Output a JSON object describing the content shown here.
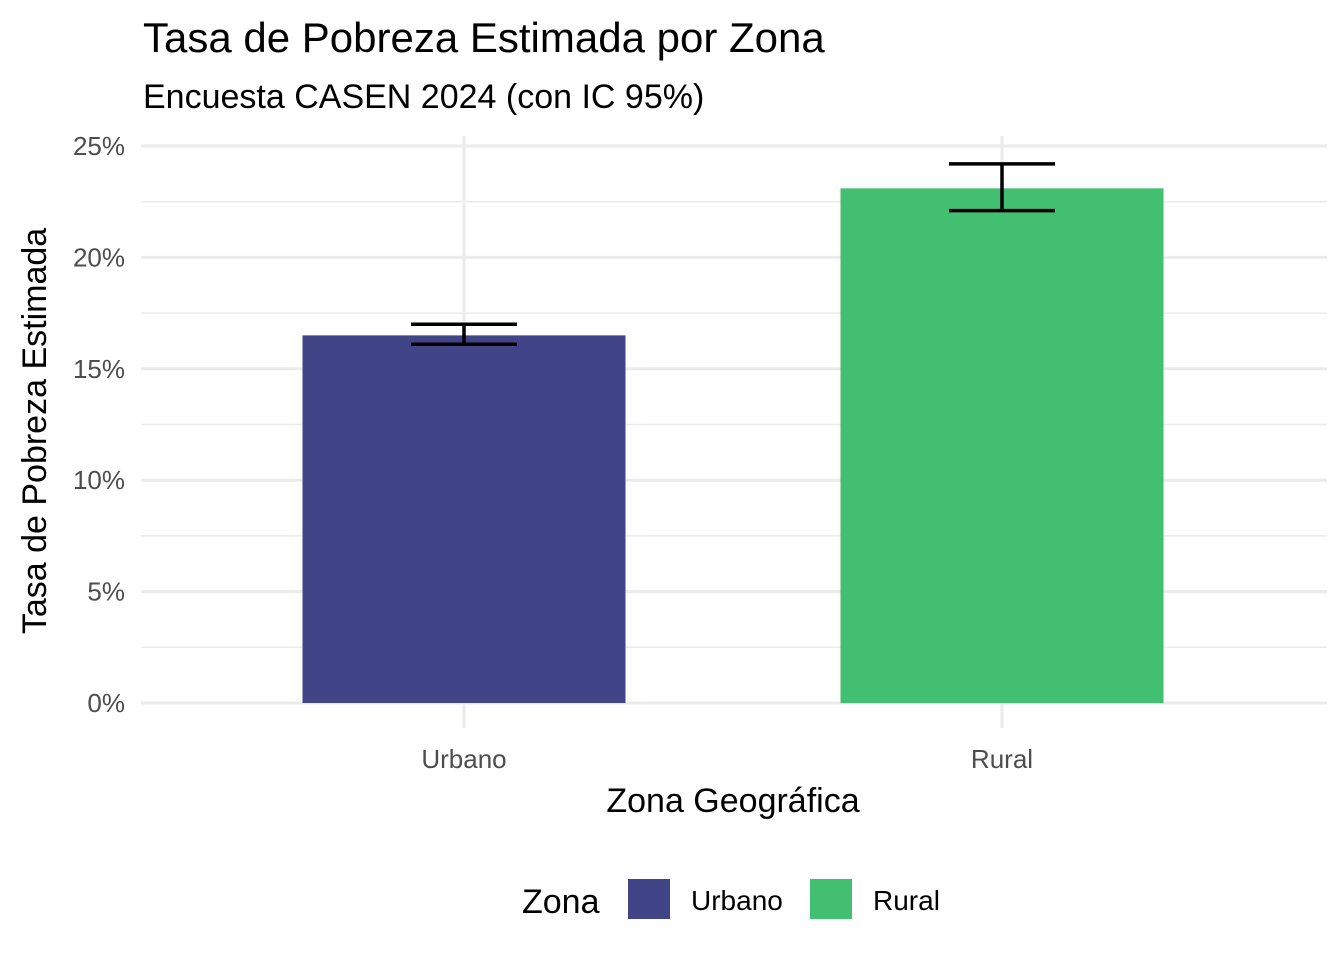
{
  "chart_data": {
    "type": "bar",
    "title": "Tasa de Pobreza Estimada por Zona",
    "subtitle": "Encuesta CASEN 2024 (con IC 95%)",
    "xlabel": "Zona Geográfica",
    "ylabel": "Tasa de Pobreza Estimada",
    "categories": [
      "Urbano",
      "Rural"
    ],
    "values": [
      0.165,
      0.231
    ],
    "ci_lower": [
      0.161,
      0.221
    ],
    "ci_upper": [
      0.17,
      0.242
    ],
    "colors": [
      "#414487",
      "#43BF71"
    ],
    "ylim": [
      0,
      0.25
    ],
    "yticks": [
      0,
      0.05,
      0.1,
      0.15,
      0.2,
      0.25
    ],
    "ytick_labels": [
      "0%",
      "5%",
      "10%",
      "15%",
      "20%",
      "25%"
    ],
    "grid": true,
    "legend": {
      "title": "Zona",
      "position": "bottom",
      "items": [
        {
          "label": "Urbano",
          "color": "#414487"
        },
        {
          "label": "Rural",
          "color": "#43BF71"
        }
      ]
    }
  }
}
